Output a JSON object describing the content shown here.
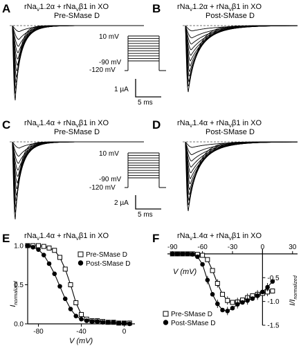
{
  "panels": [
    {
      "letter": "A",
      "title1_pre": "rNa",
      "title1_sub1": "V",
      "title1_mid": "1.2α + rNa",
      "title1_sub2": "V",
      "title1_post": "β1 in XO",
      "title2": "Pre-SMase D"
    },
    {
      "letter": "B",
      "title1_pre": "rNa",
      "title1_sub1": "V",
      "title1_mid": "1.2α + rNa",
      "title1_sub2": "V",
      "title1_post": "β1 in XO",
      "title2": "Post-SMase D"
    },
    {
      "letter": "C",
      "title1_pre": "rNa",
      "title1_sub1": "V",
      "title1_mid": "1.4α + rNa",
      "title1_sub2": "V",
      "title1_post": "β1 in XO",
      "title2": "Pre-SMase D"
    },
    {
      "letter": "D",
      "title1_pre": "rNa",
      "title1_sub1": "V",
      "title1_mid": "1.4α + rNa",
      "title1_sub2": "V",
      "title1_post": "β1 in XO",
      "title2": "Post-SMase D"
    },
    {
      "letter": "E",
      "title1_pre": "rNa",
      "title1_sub1": "V",
      "title1_mid": "1.4α + rNa",
      "title1_sub2": "V",
      "title1_post": "β1 in XO",
      "title2": ""
    },
    {
      "letter": "F",
      "title1_pre": "rNa",
      "title1_sub1": "V",
      "title1_mid": "1.4α + rNa",
      "title1_sub2": "V",
      "title1_post": "β1 in XO",
      "title2": ""
    }
  ],
  "protocol": {
    "v_top": "10 mV",
    "v_mid": "-90 mV",
    "v_hold": "-120 mV"
  },
  "scale_A": {
    "current": "1 µA",
    "time": "5 ms"
  },
  "scale_C": {
    "current": "2 µA",
    "time": "5 ms"
  },
  "chart_data": [
    {
      "type": "scatter",
      "panel": "E",
      "xlabel": "V (mV)",
      "ylabel_main": "I",
      "ylabel_sub": "normalized",
      "xlim": [
        -90,
        10
      ],
      "ylim": [
        0,
        1.0
      ],
      "xticks": [
        -80,
        -40,
        0
      ],
      "yticks": [
        0.0,
        0.5,
        1.0
      ],
      "ytick_labels": [
        "0.0",
        "0.5",
        "1.0"
      ],
      "legend_placement": "top-right",
      "series": [
        {
          "name": "Pre-SMase D",
          "marker": "open-square",
          "x": [
            -90,
            -85,
            -80,
            -75,
            -70,
            -65,
            -60,
            -55,
            -50,
            -45,
            -40,
            -35,
            -30,
            -25,
            -20,
            -15,
            -10,
            -5,
            0,
            5
          ],
          "y": [
            1.0,
            1.0,
            1.0,
            0.99,
            0.97,
            0.94,
            0.85,
            0.7,
            0.5,
            0.27,
            0.12,
            0.06,
            0.04,
            0.04,
            0.03,
            0.02,
            0.02,
            0.01,
            0.01,
            0.01
          ]
        },
        {
          "name": "Post-SMase D",
          "marker": "filled-circle",
          "x": [
            -90,
            -85,
            -80,
            -75,
            -70,
            -65,
            -60,
            -55,
            -50,
            -45,
            -40,
            -35,
            -30,
            -25,
            -20,
            -15,
            -10,
            -5,
            0,
            5
          ],
          "y": [
            1.0,
            0.98,
            0.95,
            0.88,
            0.77,
            0.64,
            0.48,
            0.32,
            0.19,
            0.1,
            0.06,
            0.04,
            0.03,
            0.03,
            0.02,
            0.02,
            0.02,
            0.01,
            0.01,
            0.0
          ]
        }
      ]
    },
    {
      "type": "scatter",
      "panel": "F",
      "xlabel": "V (mV)",
      "ylabel_main": "I/I",
      "ylabel_sub": "normalized",
      "xlim": [
        -95,
        35
      ],
      "ylim": [
        -1.5,
        0.1
      ],
      "xticks": [
        -90,
        -60,
        -30,
        0,
        30
      ],
      "yticks": [
        -0.5,
        -1.0,
        -1.5
      ],
      "ytick_labels": [
        "-0.5",
        "-1.0",
        "-1.5"
      ],
      "legend_placement": "bottom-left",
      "series": [
        {
          "name": "Pre-SMase D",
          "marker": "open-square",
          "x": [
            -90,
            -85,
            -80,
            -75,
            -70,
            -65,
            -60,
            -55,
            -50,
            -45,
            -40,
            -35,
            -30,
            -25,
            -20,
            -15,
            -10,
            -5,
            0,
            5,
            10
          ],
          "y": [
            0,
            0,
            0,
            0,
            0,
            -0.01,
            -0.03,
            -0.12,
            -0.35,
            -0.62,
            -0.85,
            -0.98,
            -1.02,
            -1.01,
            -0.97,
            -0.92,
            -0.88,
            -0.85,
            -0.83,
            -0.8,
            -0.78
          ]
        },
        {
          "name": "Post-SMase D",
          "marker": "filled-circle",
          "x": [
            -90,
            -85,
            -80,
            -75,
            -70,
            -65,
            -60,
            -55,
            -50,
            -45,
            -40,
            -35,
            -30,
            -25,
            -20,
            -15,
            -10,
            -5,
            0,
            5,
            10
          ],
          "y": [
            0,
            0,
            0,
            0,
            -0.01,
            -0.06,
            -0.22,
            -0.55,
            -0.85,
            -1.05,
            -1.18,
            -1.2,
            -1.14,
            -1.06,
            -1.02,
            -0.98,
            -0.94,
            -0.88,
            -0.8,
            -0.7,
            -0.58
          ]
        }
      ]
    }
  ]
}
